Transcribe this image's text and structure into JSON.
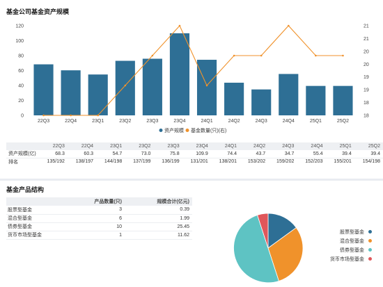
{
  "section1": {
    "title": "基金公司基金资产规模",
    "table": {
      "quarters": [
        "22Q3",
        "22Q4",
        "23Q1",
        "23Q2",
        "23Q3",
        "23Q4",
        "24Q1",
        "24Q2",
        "24Q3",
        "24Q4",
        "25Q1",
        "25Q2"
      ],
      "row1_label": "资产规模(亿)",
      "row1": [
        "68.3",
        "60.3",
        "54.7",
        "73.0",
        "75.8",
        "109.9",
        "74.4",
        "43.7",
        "34.7",
        "55.4",
        "39.4",
        "39.4"
      ],
      "row2_label": "排名",
      "row2": [
        "135/192",
        "138/197",
        "144/198",
        "137/199",
        "136/199",
        "131/201",
        "138/201",
        "153/202",
        "159/202",
        "152/203",
        "155/201",
        "154/198"
      ]
    }
  },
  "section2": {
    "title": "基金产品结构",
    "headers": [
      "",
      "产品数量(只)",
      "规模合计(亿元)"
    ],
    "rows": [
      {
        "name": "股票型基金",
        "count": "3",
        "size": "0.39"
      },
      {
        "name": "混合型基金",
        "count": "6",
        "size": "1.99"
      },
      {
        "name": "债券型基金",
        "count": "10",
        "size": "25.45"
      },
      {
        "name": "货币市场型基金",
        "count": "1",
        "size": "11.62"
      }
    ],
    "legend": [
      "股票型基金",
      "混合型基金",
      "债券型基金",
      "货币市场型基金"
    ]
  },
  "colors": {
    "bar": "#2e6f95",
    "line": "#f0922b",
    "pie": [
      "#2e6f95",
      "#f0922b",
      "#5ec3c3",
      "#e0575a"
    ]
  },
  "chart_data": [
    {
      "type": "bar",
      "categories": [
        "22Q3",
        "22Q4",
        "23Q1",
        "23Q2",
        "23Q3",
        "23Q4",
        "24Q1",
        "24Q2",
        "24Q3",
        "24Q4",
        "25Q1",
        "25Q2"
      ],
      "series": [
        {
          "name": "资产规模",
          "axis": "left",
          "type": "bar",
          "values": [
            68.3,
            60.3,
            54.7,
            73.0,
            75.8,
            109.9,
            74.4,
            43.7,
            34.7,
            55.4,
            39.4,
            39.4
          ]
        },
        {
          "name": "基金数量(只)(右)",
          "axis": "right",
          "type": "line",
          "values": [
            18,
            18,
            18,
            19,
            20,
            21,
            19,
            20,
            20,
            21,
            20,
            20
          ]
        }
      ],
      "yticks_left": [
        "0",
        "20",
        "40",
        "60",
        "80",
        "100",
        "120"
      ],
      "yticks_right": [
        "18",
        "18",
        "19",
        "19",
        "20",
        "20",
        "21",
        "21"
      ],
      "ylim": [
        0,
        120
      ],
      "ylim_right": [
        18,
        21
      ],
      "legend": "bottom-center",
      "grid": false
    },
    {
      "type": "pie",
      "categories": [
        "股票型基金",
        "混合型基金",
        "债券型基金",
        "货币市场型基金"
      ],
      "values": [
        3,
        6,
        10,
        1
      ],
      "legend": "right"
    }
  ]
}
